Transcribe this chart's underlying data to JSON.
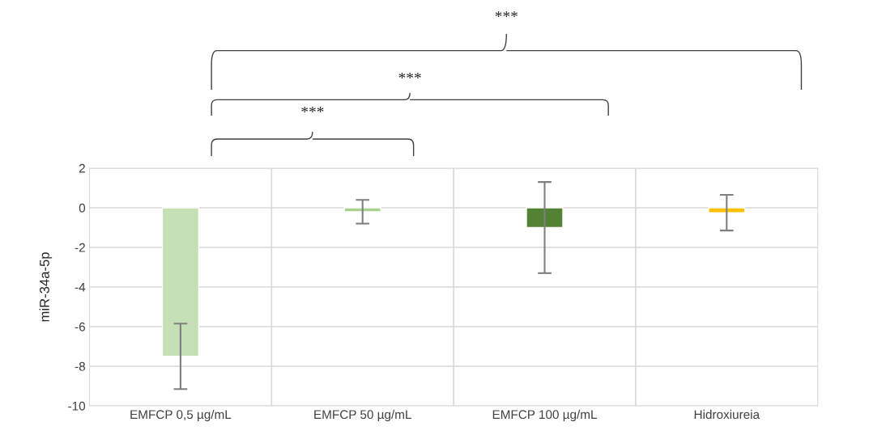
{
  "chart_data": {
    "type": "bar",
    "categories": [
      "EMFCP 0,5 µg/mL",
      "EMFCP 50 µg/mL",
      "EMFCP 100 µg/mL",
      "Hidroxiureia"
    ],
    "values": [
      -7.5,
      -0.2,
      -1.0,
      -0.25
    ],
    "colors": [
      "#c5e0b4",
      "#a9d18e",
      "#548235",
      "#ffc000"
    ],
    "errors": [
      1.65,
      0.6,
      2.3,
      0.9
    ],
    "ylabel": "miR-34a-5p",
    "ylim": [
      -10,
      2
    ],
    "yticks": [
      -10,
      -8,
      -6,
      -4,
      -2,
      0,
      2
    ],
    "grid": true,
    "annotations": [
      "***",
      "***",
      "***"
    ]
  }
}
